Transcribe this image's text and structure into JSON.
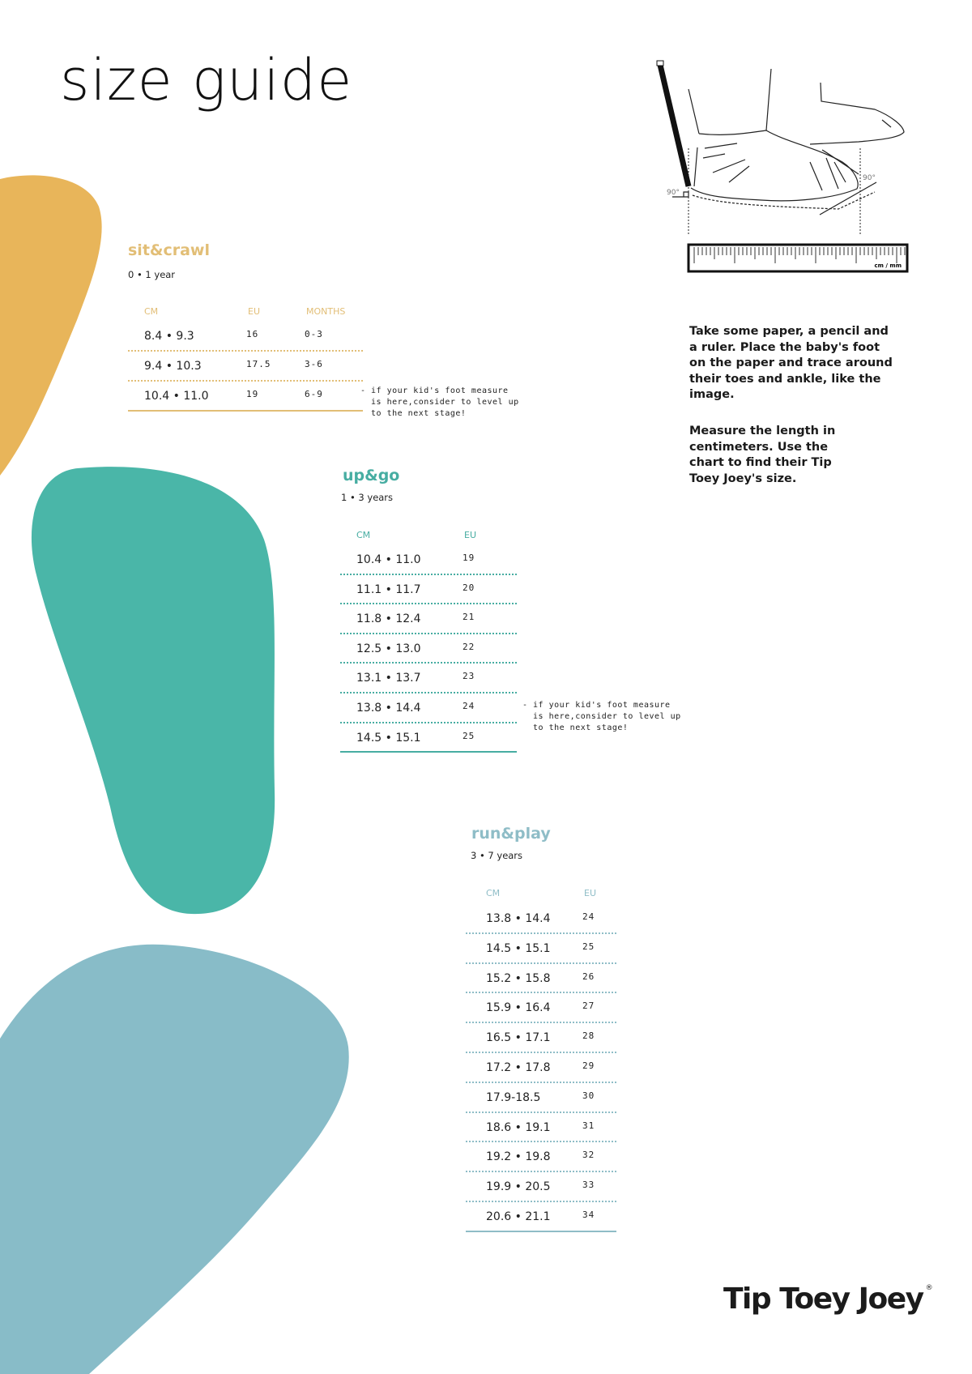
{
  "title": "size guide",
  "colors": {
    "gold": "#E8B55A",
    "green": "#4AB6A8",
    "blue": "#88BCC8",
    "gold_text": "#E2BE76",
    "green_text": "#47ADA2",
    "blue_text": "#8FBDC7"
  },
  "sections": {
    "sit_crawl": {
      "title": "sit&crawl",
      "age": "0 • 1 year",
      "headers": [
        "CM",
        "EU",
        "MONTHS"
      ],
      "rows": [
        [
          "8.4 • 9.3",
          "16",
          "0-3"
        ],
        [
          "9.4 • 10.3",
          "17.5",
          "3-6"
        ],
        [
          "10.4 • 11.0",
          "19",
          "6-9"
        ]
      ],
      "note": "- if your kid's foot measure\n  is here,consider to level up\n  to the next stage!"
    },
    "up_go": {
      "title": "up&go",
      "age": "1 • 3 years",
      "headers": [
        "CM",
        "EU"
      ],
      "rows": [
        [
          "10.4 • 11.0",
          "19"
        ],
        [
          "11.1 • 11.7",
          "20"
        ],
        [
          "11.8 • 12.4",
          "21"
        ],
        [
          "12.5 • 13.0",
          "22"
        ],
        [
          "13.1 • 13.7",
          "23"
        ],
        [
          "13.8 • 14.4",
          "24"
        ],
        [
          "14.5 • 15.1",
          "25"
        ]
      ],
      "note": "- if your kid's foot measure\n  is here,consider to level up\n  to the next stage!"
    },
    "run_play": {
      "title": "run&play",
      "age": "3 • 7 years",
      "headers": [
        "CM",
        "EU"
      ],
      "rows": [
        [
          "13.8 • 14.4",
          "24"
        ],
        [
          "14.5 • 15.1",
          "25"
        ],
        [
          "15.2 • 15.8",
          "26"
        ],
        [
          "15.9 • 16.4",
          "27"
        ],
        [
          "16.5 • 17.1",
          "28"
        ],
        [
          "17.2 • 17.8",
          "29"
        ],
        [
          "17.9-18.5",
          "30"
        ],
        [
          "18.6 • 19.1",
          "31"
        ],
        [
          "19.2 • 19.8",
          "32"
        ],
        [
          "19.9 • 20.5",
          "33"
        ],
        [
          "20.6 • 21.1",
          "34"
        ]
      ]
    }
  },
  "illustration": {
    "angle_left": "90°",
    "angle_right": "90°",
    "ruler_label": "cm / mm"
  },
  "instructions": {
    "p1": "Take some paper, a pencil and a ruler. Place the baby's foot on the paper and trace around their toes and ankle, like the image.",
    "p2": "Measure the length in centimeters. Use the chart  to find their Tip Toey Joey's size."
  },
  "brand": {
    "name": "Tip Toey Joey",
    "mark": "®"
  }
}
